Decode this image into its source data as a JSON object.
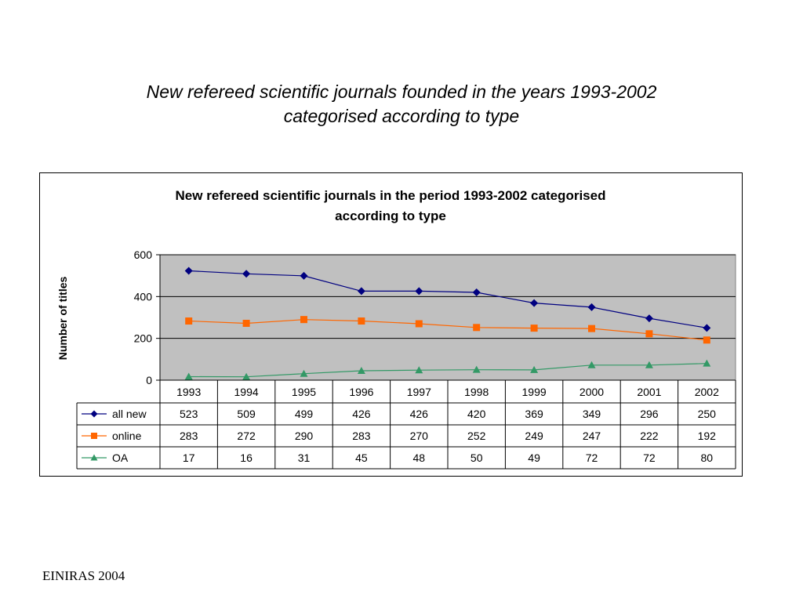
{
  "slide": {
    "title_line1": "New refereed scientific journals founded in the years 1993-2002",
    "title_line2": "categorised according to type",
    "footer": "EINIRAS 2004"
  },
  "colors": {
    "plot_background": "#c0c0c0",
    "all_new": "#000080",
    "online": "#ff6600",
    "oa": "#339966"
  },
  "chart_data": {
    "type": "line",
    "title_lines": [
      "New refereed scientific journals in the period 1993-2002 categorised",
      "according to type"
    ],
    "xlabel": "",
    "ylabel": "Number of titles",
    "ylim": [
      0,
      600
    ],
    "yticks": [
      0,
      200,
      400,
      600
    ],
    "grid": true,
    "legend": "data-table",
    "categories": [
      "1993",
      "1994",
      "1995",
      "1996",
      "1997",
      "1998",
      "1999",
      "2000",
      "2001",
      "2002"
    ],
    "series": [
      {
        "name": "all new",
        "marker": "diamond",
        "color": "#000080",
        "values": [
          523,
          509,
          499,
          426,
          426,
          420,
          369,
          349,
          296,
          250
        ]
      },
      {
        "name": "online",
        "marker": "square",
        "color": "#ff6600",
        "values": [
          283,
          272,
          290,
          283,
          270,
          252,
          249,
          247,
          222,
          192
        ]
      },
      {
        "name": "OA",
        "marker": "triangle",
        "color": "#339966",
        "values": [
          17,
          16,
          31,
          45,
          48,
          50,
          49,
          72,
          72,
          80
        ]
      }
    ]
  }
}
